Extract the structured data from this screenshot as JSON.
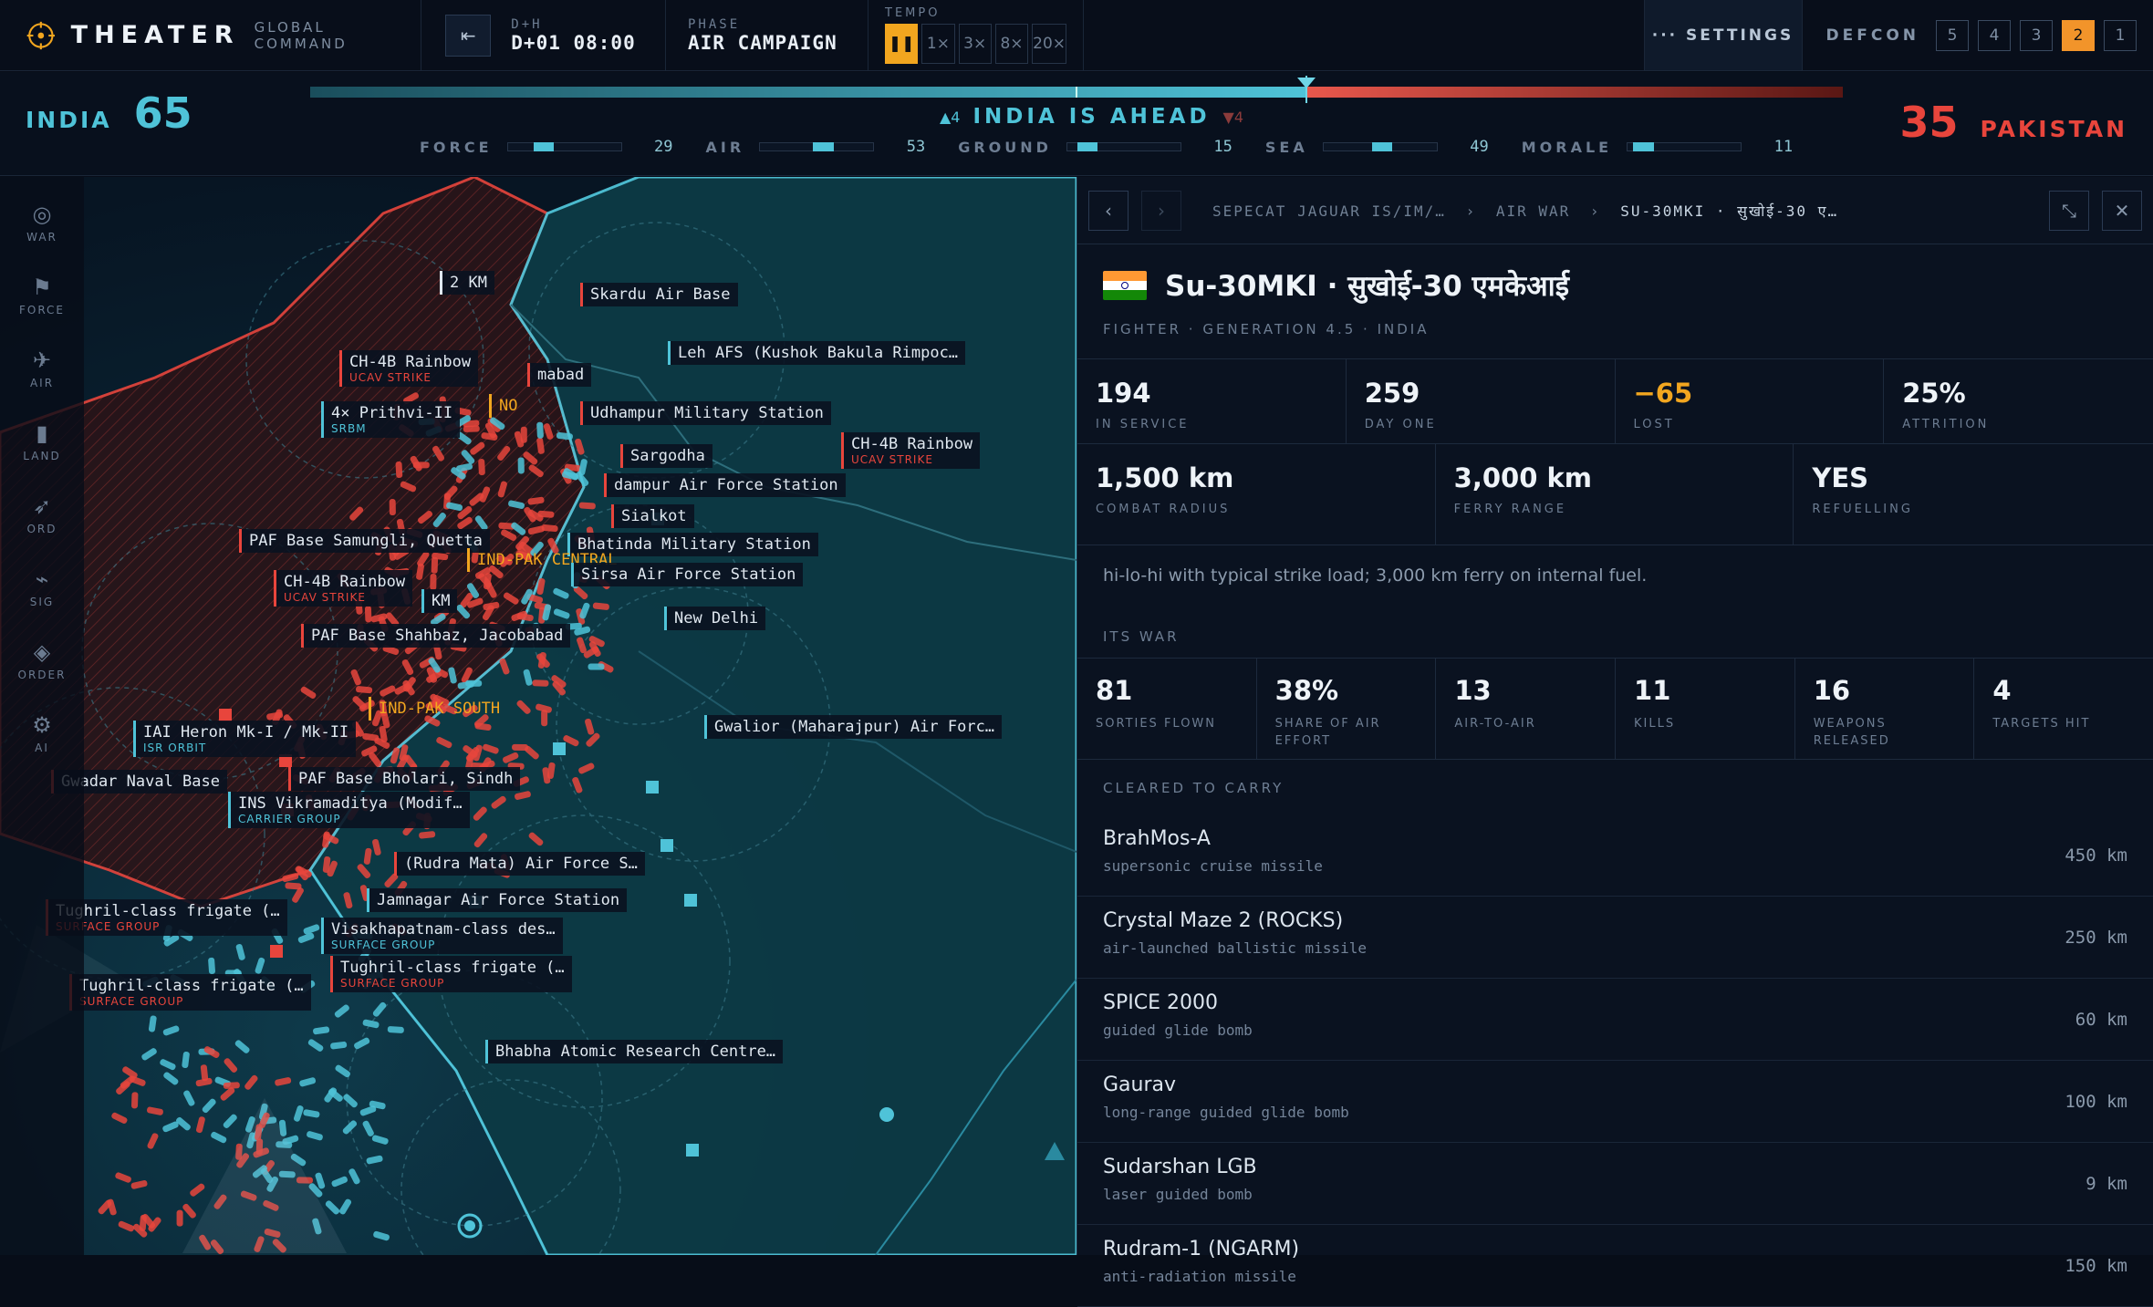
{
  "app": {
    "title": "THEATER",
    "subtitle": "GLOBAL COMMAND"
  },
  "clock": {
    "label": "D+H",
    "value": "D+01 08:00"
  },
  "phase": {
    "label": "PHASE",
    "value": "AIR CAMPAIGN"
  },
  "tempo": {
    "label": "TEMPO",
    "pause": "❚❚",
    "options": [
      "1×",
      "3×",
      "8×",
      "20×"
    ]
  },
  "settings": {
    "label": "··· SETTINGS"
  },
  "defcon": {
    "label": "DEFCON",
    "levels": [
      "5",
      "4",
      "3",
      "2",
      "1"
    ],
    "active": "2"
  },
  "score": {
    "left": {
      "name": "INDIA",
      "value": "65",
      "color": "#4fc3d8"
    },
    "right": {
      "name": "PAKISTAN",
      "value": "35",
      "color": "#e8453c"
    },
    "balance": 0.65,
    "status": "INDIA IS AHEAD",
    "up": "▲4",
    "down": "▼4",
    "metrics": [
      {
        "label": "FORCE",
        "value": "29",
        "fill": 0.29
      },
      {
        "label": "AIR",
        "value": "53",
        "fill": 0.53
      },
      {
        "label": "GROUND",
        "value": "15",
        "fill": 0.15
      },
      {
        "label": "SEA",
        "value": "49",
        "fill": 0.49
      },
      {
        "label": "MORALE",
        "value": "11",
        "fill": 0.11
      }
    ]
  },
  "rail": [
    {
      "icon": "◎",
      "label": "WAR",
      "name": "war"
    },
    {
      "icon": "⚑",
      "label": "FORCE",
      "name": "force"
    },
    {
      "icon": "✈",
      "label": "AIR",
      "name": "air"
    },
    {
      "icon": "▮",
      "label": "LAND",
      "name": "land"
    },
    {
      "icon": "➶",
      "label": "ORD",
      "name": "ord"
    },
    {
      "icon": "⌁",
      "label": "SIG",
      "name": "sig"
    },
    {
      "icon": "◈",
      "label": "ORDER",
      "name": "order"
    },
    {
      "icon": "⚙",
      "label": "AI",
      "name": "ai"
    }
  ],
  "map_labels": [
    {
      "t": "2 KM",
      "s": ""
    },
    {
      "t": "Skardu Air Base",
      "s": ""
    },
    {
      "t": "Leh AFS (Kushok Bakula Rimpoc…",
      "s": ""
    },
    {
      "t": "CH-4B Rainbow",
      "s": "UCAV STRIKE"
    },
    {
      "t": "mabad",
      "s": ""
    },
    {
      "t": "4× Prithvi-II",
      "s": "SRBM"
    },
    {
      "t": "NO",
      "s": ""
    },
    {
      "t": "Udhampur Military Station",
      "s": ""
    },
    {
      "t": "CH-4B Rainbow",
      "s": "UCAV STRIKE"
    },
    {
      "t": "Sargodha",
      "s": ""
    },
    {
      "t": "dampur Air Force Station",
      "s": ""
    },
    {
      "t": "Sialkot",
      "s": ""
    },
    {
      "t": "PAF Base Samungli, Quetta",
      "s": ""
    },
    {
      "t": "Bhatinda Military Station",
      "s": ""
    },
    {
      "t": "IND-PAK CENTRAL",
      "s": ""
    },
    {
      "t": "CH-4B Rainbow",
      "s": "UCAV STRIKE"
    },
    {
      "t": "KM",
      "s": ""
    },
    {
      "t": "Sirsa Air Force Station",
      "s": ""
    },
    {
      "t": "New Delhi",
      "s": ""
    },
    {
      "t": "PAF Base Shahbaz, Jacobabad",
      "s": ""
    },
    {
      "t": "IND-PAK SOUTH",
      "s": ""
    },
    {
      "t": "Gwalior (Maharajpur) Air Forc…",
      "s": ""
    },
    {
      "t": "IAI Heron Mk-I / Mk-II",
      "s": "ISR ORBIT"
    },
    {
      "t": "Gwadar Naval Base",
      "s": ""
    },
    {
      "t": "PAF Base Bholari, Sindh",
      "s": ""
    },
    {
      "t": "INS Vikramaditya (Modif…",
      "s": "CARRIER GROUP"
    },
    {
      "t": "(Rudra Mata) Air Force S…",
      "s": ""
    },
    {
      "t": "Jamnagar Air Force Station",
      "s": ""
    },
    {
      "t": "Tughril-class frigate (…",
      "s": "SURFACE GROUP"
    },
    {
      "t": "Visakhapatnam-class des…",
      "s": "SURFACE GROUP"
    },
    {
      "t": "Tughril-class frigate (…",
      "s": "SURFACE GROUP"
    },
    {
      "t": "Tughril-class frigate (…",
      "s": "SURFACE GROUP"
    },
    {
      "t": "Bhabha Atomic Research Centre…",
      "s": ""
    }
  ],
  "panel": {
    "crumbs": [
      "SEPECAT JAGUAR IS/IM/…",
      "AIR WAR",
      "SU-30MKI · सुखोई-30 ए…"
    ],
    "sep": "›",
    "title": "Su-30MKI · सुखोई-30 एमकेआई",
    "subtitle": "FIGHTER · GENERATION 4.5 · INDIA",
    "stats1": [
      {
        "v": "194",
        "l": "IN SERVICE",
        "c": "#eef3f8"
      },
      {
        "v": "259",
        "l": "DAY ONE",
        "c": "#eef3f8"
      },
      {
        "v": "−65",
        "l": "LOST",
        "c": "#f2a61f"
      },
      {
        "v": "25%",
        "l": "ATTRITION",
        "c": "#eef3f8"
      }
    ],
    "stats2": [
      {
        "v": "1,500 km",
        "l": "COMBAT RADIUS"
      },
      {
        "v": "3,000 km",
        "l": "FERRY RANGE"
      },
      {
        "v": "YES",
        "l": "REFUELLING"
      }
    ],
    "description": "hi-lo-hi with typical strike load; 3,000 km ferry on internal fuel.",
    "war_label": "ITS WAR",
    "war": [
      {
        "v": "81",
        "l": "SORTIES FLOWN"
      },
      {
        "v": "38%",
        "l": "SHARE OF AIR EFFORT"
      },
      {
        "v": "13",
        "l": "AIR-TO-AIR"
      },
      {
        "v": "11",
        "l": "KILLS"
      },
      {
        "v": "16",
        "l": "WEAPONS RELEASED"
      },
      {
        "v": "4",
        "l": "TARGETS HIT"
      }
    ],
    "carry_label": "CLEARED TO CARRY",
    "weapons": [
      {
        "n": "BrahMos-A",
        "d": "supersonic cruise missile",
        "r": "450 km"
      },
      {
        "n": "Crystal Maze 2 (ROCKS)",
        "d": "air-launched ballistic missile",
        "r": "250 km"
      },
      {
        "n": "SPICE 2000",
        "d": "guided glide bomb",
        "r": "60 km"
      },
      {
        "n": "Gaurav",
        "d": "long-range guided glide bomb",
        "r": "100 km"
      },
      {
        "n": "Sudarshan LGB",
        "d": "laser guided bomb",
        "r": "9 km"
      },
      {
        "n": "Rudram-1 (NGARM)",
        "d": "anti-radiation missile",
        "r": "150 km"
      }
    ]
  },
  "colors": {
    "india": "#4fc3d8",
    "pakistan": "#e8453c",
    "accent": "#f2a61f"
  }
}
